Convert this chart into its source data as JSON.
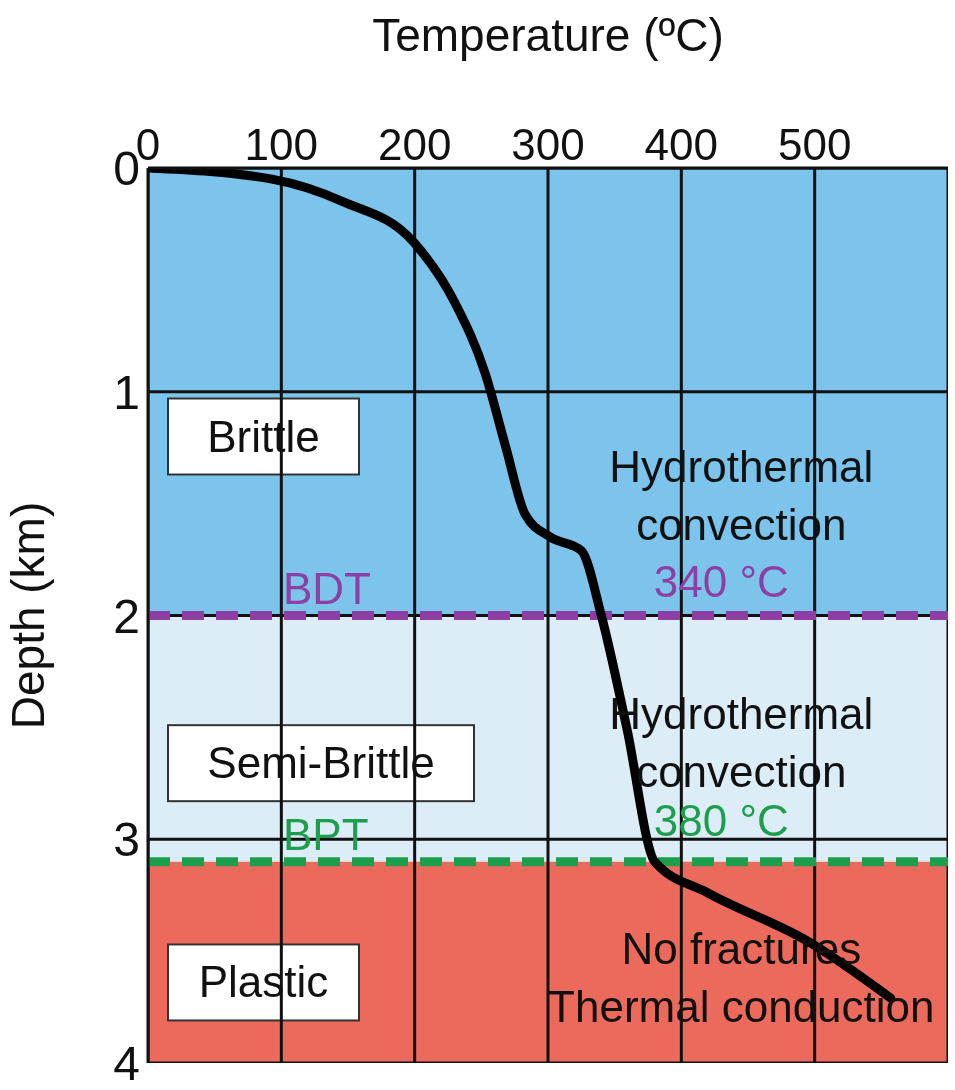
{
  "chart_data": {
    "type": "line",
    "xlabel": "Temperature (ºC)",
    "ylabel": "Depth (km)",
    "xlim": [
      0,
      600
    ],
    "xticks": [
      0,
      100,
      200,
      300,
      400,
      500,
      {
        "value": 600,
        "label": null
      }
    ],
    "ylim": [
      4,
      0
    ],
    "yticks": [
      0,
      1,
      2,
      3,
      4
    ],
    "grid": true,
    "marker": "none",
    "line_style": "solid",
    "series": [
      {
        "color": "#000000",
        "x": [
          0,
          93,
          146,
          199,
          230,
          253,
          268,
          283,
          302,
          325,
          340,
          359,
          380,
          420,
          496,
          557
        ],
        "values": [
          0,
          0.05,
          0.15,
          0.33,
          0.6,
          0.92,
          1.24,
          1.55,
          1.65,
          1.71,
          2.0,
          2.5,
          3.1,
          3.24,
          3.46,
          3.71
        ]
      }
    ],
    "bands": [
      {
        "axis": "y",
        "from": 0,
        "to": 2,
        "label": "Brittle",
        "color": "#7cc4ec"
      },
      {
        "axis": "y",
        "from": 2,
        "to": 3.1,
        "label": "Semi-Brittle",
        "color": "#dcedf8"
      },
      {
        "axis": "y",
        "from": 3.1,
        "to": 4,
        "label": "Plastic",
        "color": "#ec6a5c"
      }
    ],
    "ref_lines": [
      {
        "axis": "y",
        "value": 2,
        "label": "BDT",
        "color": "#8e3fa3",
        "line_style": "dashed"
      },
      {
        "axis": "y",
        "value": 3.1,
        "label": "BPT",
        "color": "#1d9e4c",
        "line_style": "dashed"
      }
    ],
    "annotations": [
      "Hydrothermal\nconvection",
      "Hydrothermal\nconvection",
      "No fractures\nThermal conduction",
      "340 °C",
      "380 °C"
    ]
  }
}
